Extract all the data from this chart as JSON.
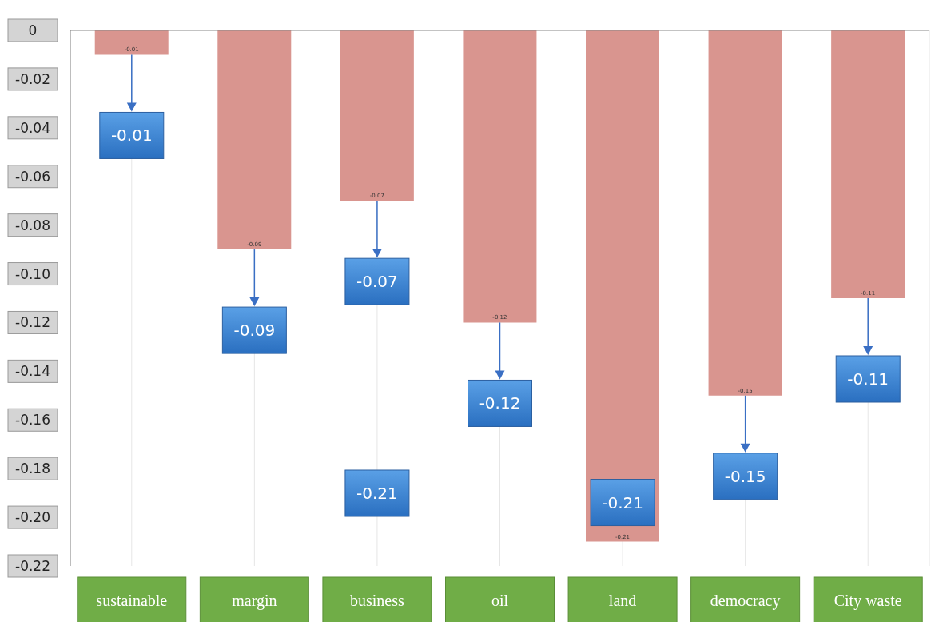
{
  "chart_data": {
    "type": "bar",
    "categories": [
      "sustainable",
      "margin",
      "business",
      "oil",
      "land",
      "democracy",
      "City waste"
    ],
    "values": [
      -0.01,
      -0.09,
      -0.07,
      -0.12,
      -0.21,
      -0.15,
      -0.11
    ],
    "color": "#d9958f",
    "ylim": [
      -0.22,
      0
    ],
    "yticks": [
      0,
      -0.02,
      -0.04,
      -0.06,
      -0.08,
      {
        "value": -0.1,
        "label": "-0.10"
      },
      -0.12,
      -0.14,
      -0.16,
      -0.18,
      {
        "value": -0.2,
        "label": "-0.20"
      },
      -0.22
    ],
    "grid": "x",
    "data_labels": true,
    "annotations": [
      {
        "text": "-0.01",
        "x": "sustainable",
        "y": -0.01
      },
      {
        "text": "-0.09",
        "x": "margin",
        "y": -0.09
      },
      {
        "text": "-0.07",
        "x": "business",
        "y": -0.07
      },
      {
        "text": "-0.12",
        "x": "oil",
        "y": -0.12
      },
      {
        "text": "-0.21",
        "x": "land",
        "y": -0.21
      },
      {
        "text": "-0.15",
        "x": "democracy",
        "y": -0.15
      },
      {
        "text": "-0.11",
        "x": "City waste",
        "y": -0.11
      },
      "-0.21"
    ]
  }
}
